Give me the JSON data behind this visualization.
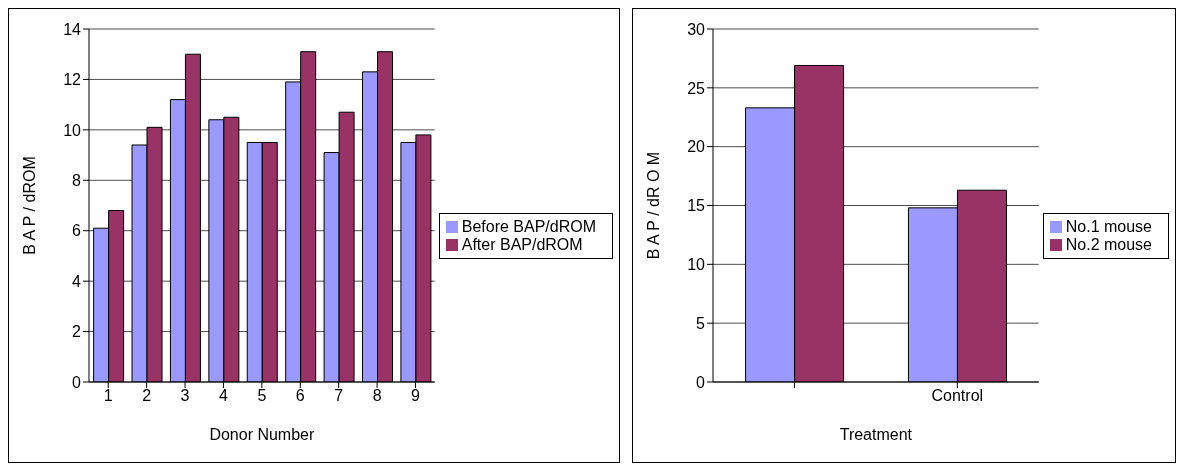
{
  "chart_data": [
    {
      "type": "bar",
      "xlabel": "Donor Number",
      "ylabel": "B A P / dROM",
      "categories": [
        "1",
        "2",
        "3",
        "4",
        "5",
        "6",
        "7",
        "8",
        "9"
      ],
      "series": [
        {
          "name": "Before BAP/dROM",
          "color": "#9999ff",
          "values": [
            6.1,
            9.4,
            11.2,
            10.4,
            9.5,
            11.9,
            9.1,
            12.3,
            9.5
          ]
        },
        {
          "name": "After BAP/dROM",
          "color": "#993366",
          "values": [
            6.8,
            10.1,
            13.0,
            10.5,
            9.5,
            13.1,
            10.7,
            13.1,
            9.8
          ]
        }
      ],
      "ylim": [
        0,
        14
      ],
      "yticks": [
        0,
        2,
        4,
        6,
        8,
        10,
        12,
        14
      ],
      "grid": "y",
      "legend": "right"
    },
    {
      "type": "bar",
      "xlabel": "Treatment",
      "ylabel": "B A P / dR O M",
      "categories": [
        null,
        "Control"
      ],
      "series": [
        {
          "name": "No.1 mouse",
          "color": "#9999ff",
          "values": [
            23.3,
            14.8
          ]
        },
        {
          "name": "No.2 mouse",
          "color": "#993366",
          "values": [
            26.9,
            16.3
          ]
        }
      ],
      "ylim": [
        0,
        30
      ],
      "yticks": [
        0,
        5,
        10,
        15,
        20,
        25,
        30
      ],
      "grid": "y",
      "legend": "right"
    }
  ]
}
